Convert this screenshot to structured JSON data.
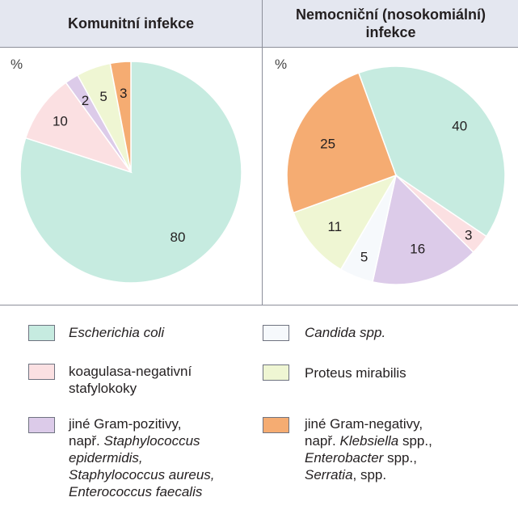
{
  "headers": {
    "left": "Komunitní infekce",
    "right_line1": "Nemocniční (nosokomiální)",
    "right_line2": "infekce"
  },
  "percent_symbol": "%",
  "colors": {
    "escherichia": "#c6ebe0",
    "koagulasa": "#fbe0e2",
    "gram_pos": "#dccbe9",
    "candida": "#f6f9fc",
    "proteus": "#eff6d3",
    "gram_neg": "#f5ac72",
    "stroke": "#6f7380"
  },
  "chart_data": [
    {
      "type": "pie",
      "title": "Komunitní infekce",
      "unit": "%",
      "slices": [
        {
          "key": "escherichia",
          "value": 80,
          "label": "80"
        },
        {
          "key": "koagulasa",
          "value": 10,
          "label": "10"
        },
        {
          "key": "gram_pos",
          "value": 2,
          "label": "2"
        },
        {
          "key": "proteus",
          "value": 5,
          "label": "5"
        },
        {
          "key": "gram_neg",
          "value": 3,
          "label": "3"
        }
      ]
    },
    {
      "type": "pie",
      "title": "Nemocniční (nosokomiální) infekce",
      "unit": "%",
      "slices": [
        {
          "key": "escherichia",
          "value": 40,
          "label": "40"
        },
        {
          "key": "koagulasa",
          "value": 3,
          "label": "3"
        },
        {
          "key": "gram_pos",
          "value": 16,
          "label": "16"
        },
        {
          "key": "candida",
          "value": 5,
          "label": "5"
        },
        {
          "key": "proteus",
          "value": 11,
          "label": "11"
        },
        {
          "key": "gram_neg",
          "value": 25,
          "label": "25"
        }
      ]
    }
  ],
  "legend": {
    "escherichia": "Escherichia coli",
    "candida": "Candida spp.",
    "koagulasa_1": "koagulasa-negativní",
    "koagulasa_2": "stafylokoky",
    "proteus": "Proteus mirabilis",
    "gram_pos_1": "jiné Gram-pozitivy,",
    "gram_pos_2a": "např. ",
    "gram_pos_2b": "Staphylococcus",
    "gram_pos_3": "epidermidis,",
    "gram_pos_4": "Staphylococcus aureus,",
    "gram_pos_5": "Enterococcus faecalis",
    "gram_neg_1": "jiné Gram-negativy,",
    "gram_neg_2a": "např. ",
    "gram_neg_2b": "Klebsiella",
    "gram_neg_2c": " spp.,",
    "gram_neg_3a": "Enterobacter",
    "gram_neg_3b": " spp.,",
    "gram_neg_4a": "Serratia",
    "gram_neg_4b": ", spp."
  }
}
